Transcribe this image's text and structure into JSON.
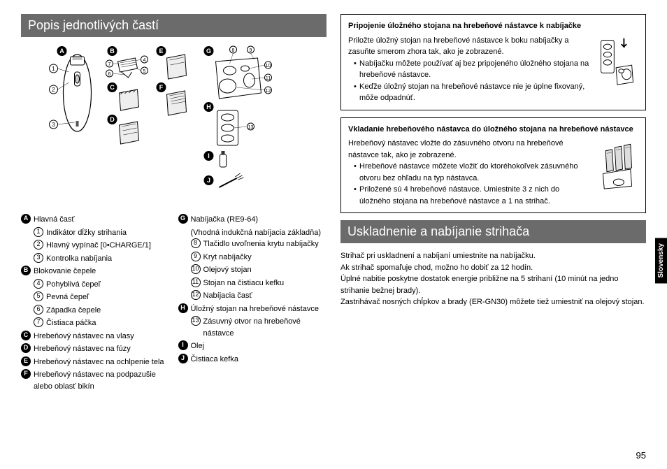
{
  "page_number": "95",
  "language_tab": "Slovensky",
  "left": {
    "header": "Popis jednotlivých častí",
    "diagram_labels": {
      "letters": [
        "A",
        "B",
        "C",
        "D",
        "E",
        "F",
        "G",
        "H",
        "I",
        "J"
      ],
      "numbers": [
        "1",
        "2",
        "3",
        "4",
        "5",
        "6",
        "7",
        "8",
        "9",
        "10",
        "11",
        "12",
        "13"
      ]
    },
    "parts_groups": [
      {
        "letter": "A",
        "label": "Hlavná časť",
        "items": [
          {
            "num": "1",
            "text": "Indikátor dĺžky strihania"
          },
          {
            "num": "2",
            "text": "Hlavný vypínač [0•CHARGE/1]"
          },
          {
            "num": "3",
            "text": "Kontrolka nabíjania"
          }
        ]
      },
      {
        "letter": "B",
        "label": "Blokovanie čepele",
        "items": [
          {
            "num": "4",
            "text": "Pohyblivá čepeľ"
          },
          {
            "num": "5",
            "text": "Pevná čepeľ"
          },
          {
            "num": "6",
            "text": "Západka čepele"
          },
          {
            "num": "7",
            "text": "Čistiaca páčka"
          }
        ]
      },
      {
        "letter": "C",
        "label": "Hrebeňový nástavec na vlasy",
        "items": []
      },
      {
        "letter": "D",
        "label": "Hrebeňový nástavec na fúzy",
        "items": []
      },
      {
        "letter": "E",
        "label": "Hrebeňový nástavec na ochlpenie tela",
        "items": []
      },
      {
        "letter": "F",
        "label": "Hrebeňový nástavec na podpazušie alebo oblasť bikín",
        "items": []
      }
    ],
    "parts_groups_right": [
      {
        "letter": "G",
        "label": "Nabíjačka (RE9-64)",
        "sublabel": "(Vhodná indukčná nabíjacia základňa)",
        "items": [
          {
            "num": "8",
            "text": "Tlačidlo uvoľnenia krytu nabíjačky"
          },
          {
            "num": "9",
            "text": "Kryt nabíjačky"
          },
          {
            "num": "10",
            "text": "Olejový stojan"
          },
          {
            "num": "11",
            "text": "Stojan na čistiacu kefku"
          },
          {
            "num": "12",
            "text": "Nabíjacia časť"
          }
        ]
      },
      {
        "letter": "H",
        "label": "Úložný stojan na hrebeňové nástavce",
        "items": [
          {
            "num": "13",
            "text": "Zásuvný otvor na hrebeňové nástavce"
          }
        ]
      },
      {
        "letter": "I",
        "label": "Olej",
        "items": []
      },
      {
        "letter": "J",
        "label": "Čistiaca kefka",
        "items": []
      }
    ]
  },
  "right": {
    "box1": {
      "title": "Pripojenie úložného stojana na hrebeňové nástavce k nabíjačke",
      "intro": "Priložte úložný stojan na hrebeňové nástavce k boku nabíjačky a zasuňte smerom zhora tak, ako je zobrazené.",
      "bullets": [
        "Nabíjačku môžete používať aj bez pripojeného úložného stojana na hrebeňové nástavce.",
        "Keďže úložný stojan na hrebeňové nástavce nie je úplne fixovaný, môže odpadnúť."
      ]
    },
    "box2": {
      "title": "Vkladanie hrebeňového nástavca do úložného stojana na hrebeňové nástavce",
      "intro": "Hrebeňový nástavec vložte do zásuvného otvoru na hrebeňové nástavce tak, ako je zobrazené.",
      "bullets": [
        "Hrebeňové nástavce môžete vložiť do ktoréhokoľvek zásuvného otvoru bez ohľadu na typ nástavca.",
        "Priložené sú 4 hrebeňové nástavce. Umiestnite 3 z nich do úložného stojana na hrebeňové nástavce a 1 na strihač."
      ]
    },
    "section2_header": "Uskladnenie a nabíjanie strihača",
    "section2_body": [
      "Strihač pri uskladnení a nabíjaní umiestnite na nabíjačku.",
      "Ak strihač spomaľuje chod, možno ho dobiť za 12 hodín.",
      "Úplné nabitie poskytne dostatok energie približne na 5 strihaní (10 minút na jedno strihanie bežnej brady).",
      "Zastrihávač nosných chĺpkov a brady (ER-GN30) môžete tiež umiestniť na olejový stojan."
    ]
  }
}
